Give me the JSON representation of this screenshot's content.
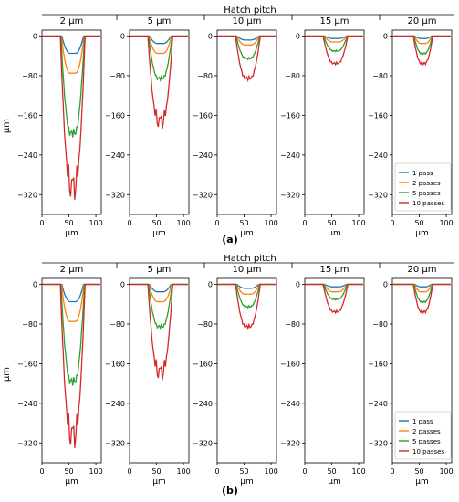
{
  "figure": {
    "group_title": "Hatch pitch",
    "columns": [
      "2 µm",
      "5 µm",
      "10 µm",
      "15 µm",
      "20 µm"
    ],
    "ylabel": "µm",
    "xlabel": "µm",
    "panel_labels": [
      "(a)",
      "(b)"
    ]
  },
  "chart_data": {
    "type": "line",
    "xlim": [
      0,
      110
    ],
    "ylim": [
      -360,
      12
    ],
    "x_ticks": [
      0,
      50,
      100
    ],
    "y_ticks": [
      0,
      -80,
      -160,
      -240,
      -320
    ],
    "y_tick_labels": [
      "0",
      "−80",
      "−160",
      "−240",
      "−320"
    ],
    "x_tick_labels": [
      "0",
      "50",
      "100"
    ],
    "legend": {
      "location": "lower-right",
      "panel": "20 µm",
      "entries": [
        "1 pass",
        "2 passes",
        "5 passes",
        "10 passes"
      ]
    },
    "series_colors": [
      "#1f77b4",
      "#ff7f0e",
      "#2ca02c",
      "#d62728"
    ],
    "rows": [
      {
        "label": "(a)",
        "panels": [
          {
            "pitch": "2 µm",
            "depths": [
              -35,
              -75,
              -195,
              -300
            ],
            "widths": [
              40,
              42,
              44,
              46
            ]
          },
          {
            "pitch": "5 µm",
            "depths": [
              -15,
              -35,
              -85,
              -170
            ],
            "widths": [
              40,
              42,
              44,
              46
            ]
          },
          {
            "pitch": "10 µm",
            "depths": [
              -8,
              -18,
              -45,
              -85
            ],
            "widths": [
              40,
              42,
              44,
              46
            ]
          },
          {
            "pitch": "15 µm",
            "depths": [
              -5,
              -12,
              -30,
              -55
            ],
            "widths": [
              40,
              42,
              44,
              46
            ]
          },
          {
            "pitch": "20 µm",
            "depths": [
              -5,
              -15,
              -35,
              -55
            ],
            "widths": [
              30,
              32,
              34,
              36
            ]
          }
        ]
      },
      {
        "label": "(b)",
        "panels": [
          {
            "pitch": "2 µm",
            "depths": [
              -35,
              -75,
              -195,
              -300
            ],
            "widths": [
              40,
              42,
              44,
              46
            ]
          },
          {
            "pitch": "5 µm",
            "depths": [
              -15,
              -35,
              -85,
              -175
            ],
            "widths": [
              40,
              42,
              44,
              46
            ]
          },
          {
            "pitch": "10 µm",
            "depths": [
              -8,
              -20,
              -45,
              -85
            ],
            "widths": [
              40,
              42,
              44,
              46
            ]
          },
          {
            "pitch": "15 µm",
            "depths": [
              -5,
              -15,
              -30,
              -55
            ],
            "widths": [
              40,
              42,
              44,
              46
            ]
          },
          {
            "pitch": "20 µm",
            "depths": [
              -5,
              -15,
              -35,
              -55
            ],
            "widths": [
              30,
              32,
              34,
              36
            ]
          }
        ]
      }
    ]
  }
}
